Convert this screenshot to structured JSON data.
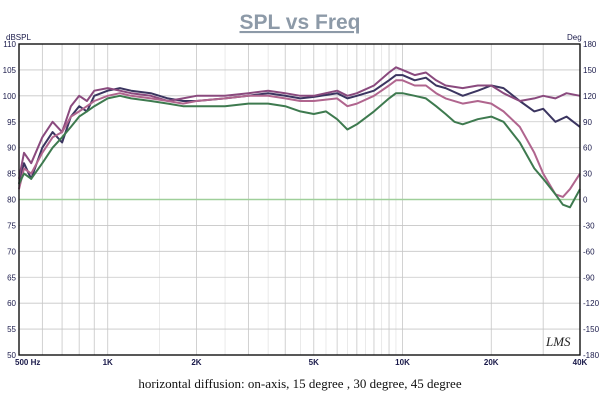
{
  "chart_data": {
    "type": "line",
    "title": "SPL vs Freq",
    "y_unit_left": "dBSPL",
    "y_unit_right": "Deg",
    "x_scale": "log",
    "xlim": [
      500,
      40000
    ],
    "ylim": [
      50,
      110
    ],
    "y2lim": [
      -180,
      180
    ],
    "x_ticks": [
      {
        "v": 500,
        "label": "500 Hz"
      },
      {
        "v": 1000,
        "label": "1K"
      },
      {
        "v": 2000,
        "label": "2K"
      },
      {
        "v": 5000,
        "label": "5K"
      },
      {
        "v": 10000,
        "label": "10K"
      },
      {
        "v": 20000,
        "label": "20K"
      },
      {
        "v": 40000,
        "label": "40K"
      }
    ],
    "y_ticks": [
      "110",
      "105",
      "100",
      "95",
      "90",
      "85",
      "80",
      "75",
      "70",
      "65",
      "60",
      "55",
      "50"
    ],
    "y2_ticks": [
      "180",
      "150",
      "120",
      "90",
      "60",
      "30",
      "0",
      "-30",
      "-60",
      "-90",
      "-120",
      "-150",
      "-180"
    ],
    "grid": true,
    "series": [
      {
        "color": "#3b3560",
        "points": [
          [
            500,
            83
          ],
          [
            520,
            87
          ],
          [
            550,
            84
          ],
          [
            600,
            90
          ],
          [
            650,
            93
          ],
          [
            700,
            91
          ],
          [
            750,
            96
          ],
          [
            800,
            98
          ],
          [
            850,
            97
          ],
          [
            900,
            100
          ],
          [
            1000,
            101
          ],
          [
            1100,
            101.5
          ],
          [
            1200,
            101
          ],
          [
            1400,
            100.5
          ],
          [
            1600,
            99.5
          ],
          [
            1800,
            99
          ],
          [
            2000,
            99
          ],
          [
            2500,
            99.5
          ],
          [
            3000,
            100
          ],
          [
            3500,
            100.5
          ],
          [
            4000,
            100
          ],
          [
            4500,
            99.5
          ],
          [
            5000,
            99.8
          ],
          [
            6000,
            100.5
          ],
          [
            6500,
            99.5
          ],
          [
            7000,
            100
          ],
          [
            8000,
            101
          ],
          [
            9000,
            103
          ],
          [
            9500,
            104
          ],
          [
            10000,
            104
          ],
          [
            11000,
            103
          ],
          [
            12000,
            103.5
          ],
          [
            13000,
            102
          ],
          [
            14000,
            101.5
          ],
          [
            16000,
            100
          ],
          [
            18000,
            101
          ],
          [
            20000,
            102
          ],
          [
            22000,
            101.5
          ],
          [
            25000,
            99
          ],
          [
            28000,
            97
          ],
          [
            30000,
            97.5
          ],
          [
            33000,
            95
          ],
          [
            36000,
            96
          ],
          [
            40000,
            94
          ]
        ]
      },
      {
        "color": "#8a4a7e",
        "points": [
          [
            500,
            84
          ],
          [
            520,
            89
          ],
          [
            550,
            87
          ],
          [
            600,
            92
          ],
          [
            650,
            95
          ],
          [
            700,
            93
          ],
          [
            750,
            98
          ],
          [
            800,
            100
          ],
          [
            850,
            99
          ],
          [
            900,
            101
          ],
          [
            1000,
            101.5
          ],
          [
            1100,
            101
          ],
          [
            1200,
            100.5
          ],
          [
            1400,
            100
          ],
          [
            1600,
            99
          ],
          [
            1800,
            99.5
          ],
          [
            2000,
            100
          ],
          [
            2500,
            100
          ],
          [
            3000,
            100.5
          ],
          [
            3500,
            101
          ],
          [
            4000,
            100.5
          ],
          [
            4500,
            100
          ],
          [
            5000,
            100
          ],
          [
            6000,
            101
          ],
          [
            6500,
            100
          ],
          [
            7000,
            100.5
          ],
          [
            8000,
            102
          ],
          [
            9000,
            104.5
          ],
          [
            9500,
            105.5
          ],
          [
            10000,
            105
          ],
          [
            11000,
            104
          ],
          [
            12000,
            104.5
          ],
          [
            13000,
            103
          ],
          [
            14000,
            102
          ],
          [
            16000,
            101.5
          ],
          [
            18000,
            102
          ],
          [
            20000,
            102
          ],
          [
            22000,
            100.5
          ],
          [
            25000,
            99
          ],
          [
            28000,
            99.5
          ],
          [
            30000,
            100
          ],
          [
            33000,
            99.5
          ],
          [
            36000,
            100.5
          ],
          [
            40000,
            100
          ]
        ]
      },
      {
        "color": "#b0658e",
        "points": [
          [
            500,
            82
          ],
          [
            520,
            86
          ],
          [
            550,
            85
          ],
          [
            600,
            89
          ],
          [
            650,
            92
          ],
          [
            700,
            93
          ],
          [
            750,
            96
          ],
          [
            800,
            97
          ],
          [
            850,
            98
          ],
          [
            900,
            99
          ],
          [
            1000,
            100
          ],
          [
            1100,
            100.5
          ],
          [
            1200,
            100
          ],
          [
            1400,
            99.5
          ],
          [
            1600,
            99
          ],
          [
            1800,
            98.5
          ],
          [
            2000,
            99
          ],
          [
            2500,
            99.5
          ],
          [
            3000,
            100
          ],
          [
            3500,
            100
          ],
          [
            4000,
            99.5
          ],
          [
            4500,
            99
          ],
          [
            5000,
            99
          ],
          [
            6000,
            99.5
          ],
          [
            6500,
            98
          ],
          [
            7000,
            98.5
          ],
          [
            8000,
            100
          ],
          [
            9000,
            102
          ],
          [
            9500,
            103
          ],
          [
            10000,
            103
          ],
          [
            11000,
            102
          ],
          [
            12000,
            102
          ],
          [
            13000,
            100.5
          ],
          [
            14000,
            99.5
          ],
          [
            16000,
            98.5
          ],
          [
            18000,
            99
          ],
          [
            20000,
            98.5
          ],
          [
            22000,
            97
          ],
          [
            25000,
            94
          ],
          [
            28000,
            89
          ],
          [
            30000,
            85
          ],
          [
            33000,
            81
          ],
          [
            35000,
            80.5
          ],
          [
            37000,
            82
          ],
          [
            40000,
            85
          ]
        ]
      },
      {
        "color": "#3e7a4f",
        "points": [
          [
            500,
            83
          ],
          [
            520,
            85
          ],
          [
            550,
            84
          ],
          [
            600,
            87
          ],
          [
            650,
            90
          ],
          [
            700,
            92
          ],
          [
            750,
            94
          ],
          [
            800,
            96
          ],
          [
            850,
            97
          ],
          [
            900,
            98
          ],
          [
            1000,
            99.5
          ],
          [
            1100,
            100
          ],
          [
            1200,
            99.5
          ],
          [
            1400,
            99
          ],
          [
            1600,
            98.5
          ],
          [
            1800,
            98
          ],
          [
            2000,
            98
          ],
          [
            2500,
            98
          ],
          [
            3000,
            98.5
          ],
          [
            3500,
            98.5
          ],
          [
            4000,
            98
          ],
          [
            4500,
            97
          ],
          [
            5000,
            96.5
          ],
          [
            5500,
            97
          ],
          [
            6000,
            95.5
          ],
          [
            6500,
            93.5
          ],
          [
            7000,
            94.5
          ],
          [
            8000,
            97
          ],
          [
            9000,
            99.5
          ],
          [
            9500,
            100.5
          ],
          [
            10000,
            100.5
          ],
          [
            11000,
            100
          ],
          [
            12000,
            99.5
          ],
          [
            13000,
            98
          ],
          [
            14000,
            96.5
          ],
          [
            15000,
            95
          ],
          [
            16000,
            94.5
          ],
          [
            18000,
            95.5
          ],
          [
            20000,
            96
          ],
          [
            22000,
            95
          ],
          [
            25000,
            91
          ],
          [
            28000,
            86
          ],
          [
            30000,
            84
          ],
          [
            33000,
            81
          ],
          [
            35000,
            79
          ],
          [
            37000,
            78.5
          ],
          [
            40000,
            82
          ]
        ]
      }
    ]
  },
  "watermark": "LMS",
  "caption": "horizontal diffusion: on-axis, 15 degree , 30 degree, 45 degree"
}
